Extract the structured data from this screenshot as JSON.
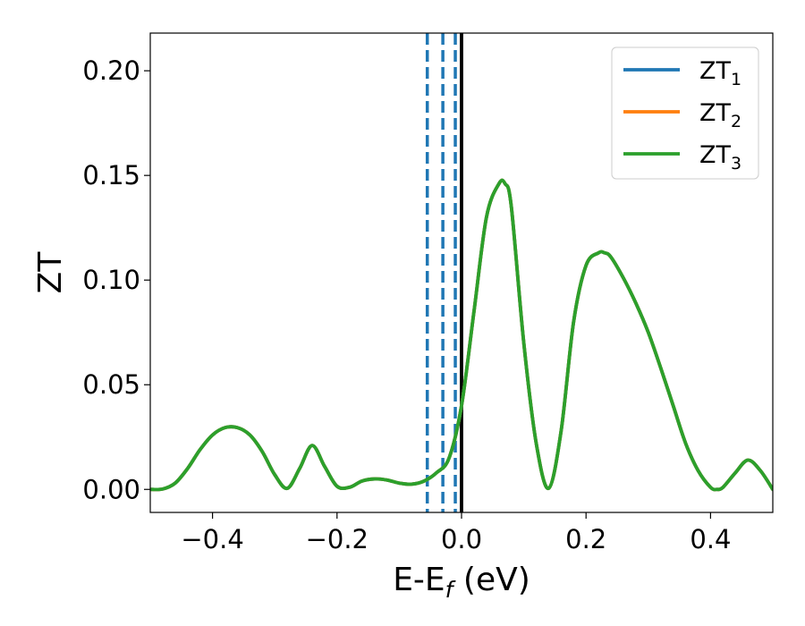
{
  "chart_data": {
    "type": "line",
    "title": "",
    "xlabel": "E-E",
    "xlabel_sub": "f",
    "xlabel_unit": " (eV)",
    "ylabel": "ZT",
    "xlim": [
      -0.5,
      0.5
    ],
    "ylim": [
      -0.011,
      0.218
    ],
    "x_ticks": [
      -0.4,
      -0.2,
      0.0,
      0.2,
      0.4
    ],
    "x_tick_labels": [
      "−0.4",
      "−0.2",
      "0.0",
      "0.2",
      "0.4"
    ],
    "y_ticks": [
      0.0,
      0.05,
      0.1,
      0.15,
      0.2
    ],
    "y_tick_labels": [
      "0.00",
      "0.05",
      "0.10",
      "0.15",
      "0.20"
    ],
    "grid": false,
    "legend": {
      "position": "top-right",
      "entries": [
        {
          "base": "ZT",
          "sub": "1",
          "color": "#1f77b4"
        },
        {
          "base": "ZT",
          "sub": "2",
          "color": "#ff7f0e"
        },
        {
          "base": "ZT",
          "sub": "3",
          "color": "#2ca02c"
        }
      ]
    },
    "series": [
      {
        "name": "ZT1",
        "color": "#1f77b4",
        "x": [
          -0.5,
          -0.48,
          -0.46,
          -0.44,
          -0.42,
          -0.4,
          -0.38,
          -0.36,
          -0.34,
          -0.32,
          -0.3,
          -0.28,
          -0.26,
          -0.24,
          -0.22,
          -0.2,
          -0.18,
          -0.16,
          -0.14,
          -0.12,
          -0.1,
          -0.08,
          -0.06,
          -0.04,
          -0.02,
          0.0,
          0.02,
          0.04,
          0.06,
          0.07,
          0.08,
          0.1,
          0.12,
          0.14,
          0.16,
          0.18,
          0.2,
          0.22,
          0.23,
          0.24,
          0.26,
          0.28,
          0.3,
          0.32,
          0.34,
          0.36,
          0.38,
          0.4,
          0.41,
          0.42,
          0.44,
          0.46,
          0.48,
          0.5
        ],
        "y": [
          0.0,
          0.0002,
          0.003,
          0.01,
          0.019,
          0.026,
          0.0295,
          0.0295,
          0.026,
          0.018,
          0.007,
          0.0005,
          0.01,
          0.021,
          0.011,
          0.0015,
          0.001,
          0.004,
          0.005,
          0.0045,
          0.003,
          0.0025,
          0.004,
          0.008,
          0.015,
          0.04,
          0.085,
          0.13,
          0.146,
          0.146,
          0.135,
          0.07,
          0.022,
          0.0005,
          0.028,
          0.08,
          0.107,
          0.113,
          0.113,
          0.111,
          0.101,
          0.089,
          0.075,
          0.058,
          0.04,
          0.022,
          0.009,
          0.001,
          0.0,
          0.001,
          0.008,
          0.014,
          0.009,
          0.0
        ]
      },
      {
        "name": "ZT2",
        "color": "#ff7f0e",
        "x": [
          -0.5,
          -0.48,
          -0.46,
          -0.44,
          -0.42,
          -0.4,
          -0.38,
          -0.36,
          -0.34,
          -0.32,
          -0.3,
          -0.28,
          -0.26,
          -0.24,
          -0.22,
          -0.2,
          -0.18,
          -0.16,
          -0.14,
          -0.12,
          -0.1,
          -0.08,
          -0.06,
          -0.04,
          -0.02,
          0.0,
          0.02,
          0.04,
          0.06,
          0.07,
          0.08,
          0.1,
          0.12,
          0.14,
          0.16,
          0.18,
          0.2,
          0.22,
          0.23,
          0.24,
          0.26,
          0.28,
          0.3,
          0.32,
          0.34,
          0.36,
          0.38,
          0.4,
          0.41,
          0.42,
          0.44,
          0.46,
          0.48,
          0.5
        ],
        "y": [
          0.0,
          0.0002,
          0.003,
          0.01,
          0.019,
          0.026,
          0.0295,
          0.0295,
          0.026,
          0.018,
          0.007,
          0.0005,
          0.01,
          0.021,
          0.011,
          0.0015,
          0.001,
          0.004,
          0.005,
          0.0045,
          0.003,
          0.0025,
          0.004,
          0.008,
          0.015,
          0.04,
          0.085,
          0.13,
          0.146,
          0.146,
          0.135,
          0.07,
          0.022,
          0.0005,
          0.028,
          0.08,
          0.107,
          0.113,
          0.113,
          0.111,
          0.101,
          0.089,
          0.075,
          0.058,
          0.04,
          0.022,
          0.009,
          0.001,
          0.0,
          0.001,
          0.008,
          0.014,
          0.009,
          0.0
        ]
      },
      {
        "name": "ZT3",
        "color": "#2ca02c",
        "x": [
          -0.5,
          -0.48,
          -0.46,
          -0.44,
          -0.42,
          -0.4,
          -0.38,
          -0.36,
          -0.34,
          -0.32,
          -0.3,
          -0.28,
          -0.26,
          -0.24,
          -0.22,
          -0.2,
          -0.18,
          -0.16,
          -0.14,
          -0.12,
          -0.1,
          -0.08,
          -0.06,
          -0.04,
          -0.02,
          0.0,
          0.02,
          0.04,
          0.06,
          0.07,
          0.08,
          0.1,
          0.12,
          0.14,
          0.16,
          0.18,
          0.2,
          0.22,
          0.23,
          0.24,
          0.26,
          0.28,
          0.3,
          0.32,
          0.34,
          0.36,
          0.38,
          0.4,
          0.41,
          0.42,
          0.44,
          0.46,
          0.48,
          0.5
        ],
        "y": [
          0.0,
          0.0002,
          0.003,
          0.01,
          0.019,
          0.026,
          0.0295,
          0.0295,
          0.026,
          0.018,
          0.007,
          0.0005,
          0.01,
          0.021,
          0.011,
          0.0015,
          0.001,
          0.004,
          0.005,
          0.0045,
          0.003,
          0.0025,
          0.004,
          0.008,
          0.015,
          0.04,
          0.085,
          0.13,
          0.146,
          0.146,
          0.135,
          0.07,
          0.022,
          0.0005,
          0.028,
          0.08,
          0.107,
          0.113,
          0.113,
          0.111,
          0.101,
          0.089,
          0.075,
          0.058,
          0.04,
          0.022,
          0.009,
          0.001,
          0.0,
          0.001,
          0.008,
          0.014,
          0.009,
          0.0
        ]
      }
    ],
    "vertical_lines": [
      {
        "x": -0.055,
        "style": "dashed",
        "color": "#1f77b4"
      },
      {
        "x": -0.03,
        "style": "dashed",
        "color": "#1f77b4"
      },
      {
        "x": -0.01,
        "style": "dashed",
        "color": "#1f77b4"
      },
      {
        "x": 0.0,
        "style": "solid",
        "color": "#000000"
      }
    ]
  }
}
